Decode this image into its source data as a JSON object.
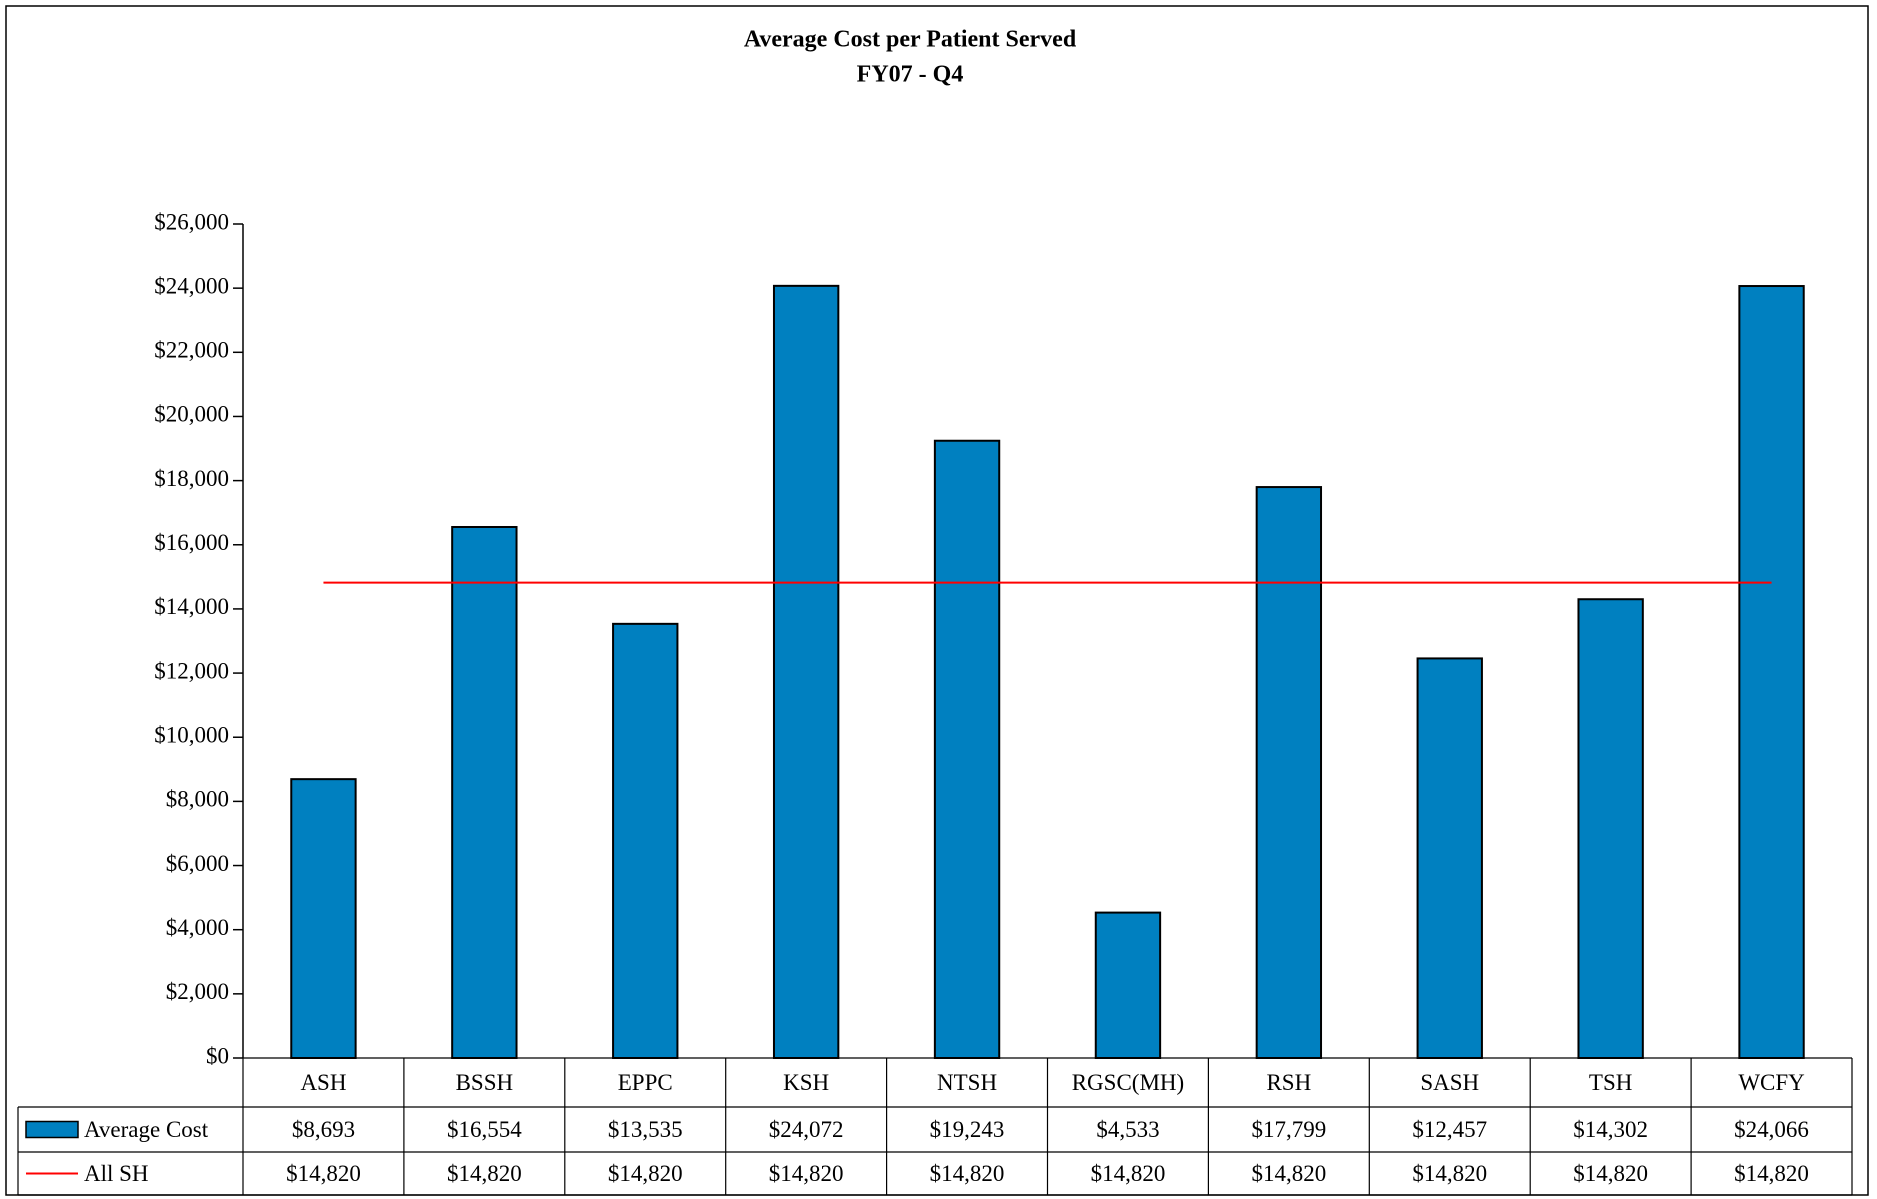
{
  "chart_data": {
    "type": "bar",
    "title": "Average Cost per Patient Served",
    "subtitle": "FY07 - Q4",
    "categories": [
      "ASH",
      "BSSH",
      "EPPC",
      "KSH",
      "NTSH",
      "RGSC(MH)",
      "RSH",
      "SASH",
      "TSH",
      "WCFY"
    ],
    "series": [
      {
        "name": "Average Cost",
        "type": "bar",
        "color": "#0080c0",
        "values": [
          8693,
          16554,
          13535,
          24072,
          19243,
          4533,
          17799,
          12457,
          14302,
          24066
        ],
        "value_labels": [
          "$8,693",
          "$16,554",
          "$13,535",
          "$24,072",
          "$19,243",
          "$4,533",
          "$17,799",
          "$12,457",
          "$14,302",
          "$24,066"
        ]
      },
      {
        "name": "All SH",
        "type": "line",
        "color": "#ff0000",
        "values": [
          14820,
          14820,
          14820,
          14820,
          14820,
          14820,
          14820,
          14820,
          14820,
          14820
        ],
        "value_labels": [
          "$14,820",
          "$14,820",
          "$14,820",
          "$14,820",
          "$14,820",
          "$14,820",
          "$14,820",
          "$14,820",
          "$14,820",
          "$14,820"
        ]
      }
    ],
    "ylim": [
      0,
      26000
    ],
    "yticks": [
      {
        "value": 0,
        "label": "$0"
      },
      {
        "value": 2000,
        "label": "$2,000"
      },
      {
        "value": 4000,
        "label": "$4,000"
      },
      {
        "value": 6000,
        "label": "$6,000"
      },
      {
        "value": 8000,
        "label": "$8,000"
      },
      {
        "value": 10000,
        "label": "$10,000"
      },
      {
        "value": 12000,
        "label": "$12,000"
      },
      {
        "value": 14000,
        "label": "$14,000"
      },
      {
        "value": 16000,
        "label": "$16,000"
      },
      {
        "value": 18000,
        "label": "$18,000"
      },
      {
        "value": 20000,
        "label": "$20,000"
      },
      {
        "value": 22000,
        "label": "$22,000"
      },
      {
        "value": 24000,
        "label": "$24,000"
      },
      {
        "value": 26000,
        "label": "$26,000"
      }
    ],
    "grid": false
  }
}
